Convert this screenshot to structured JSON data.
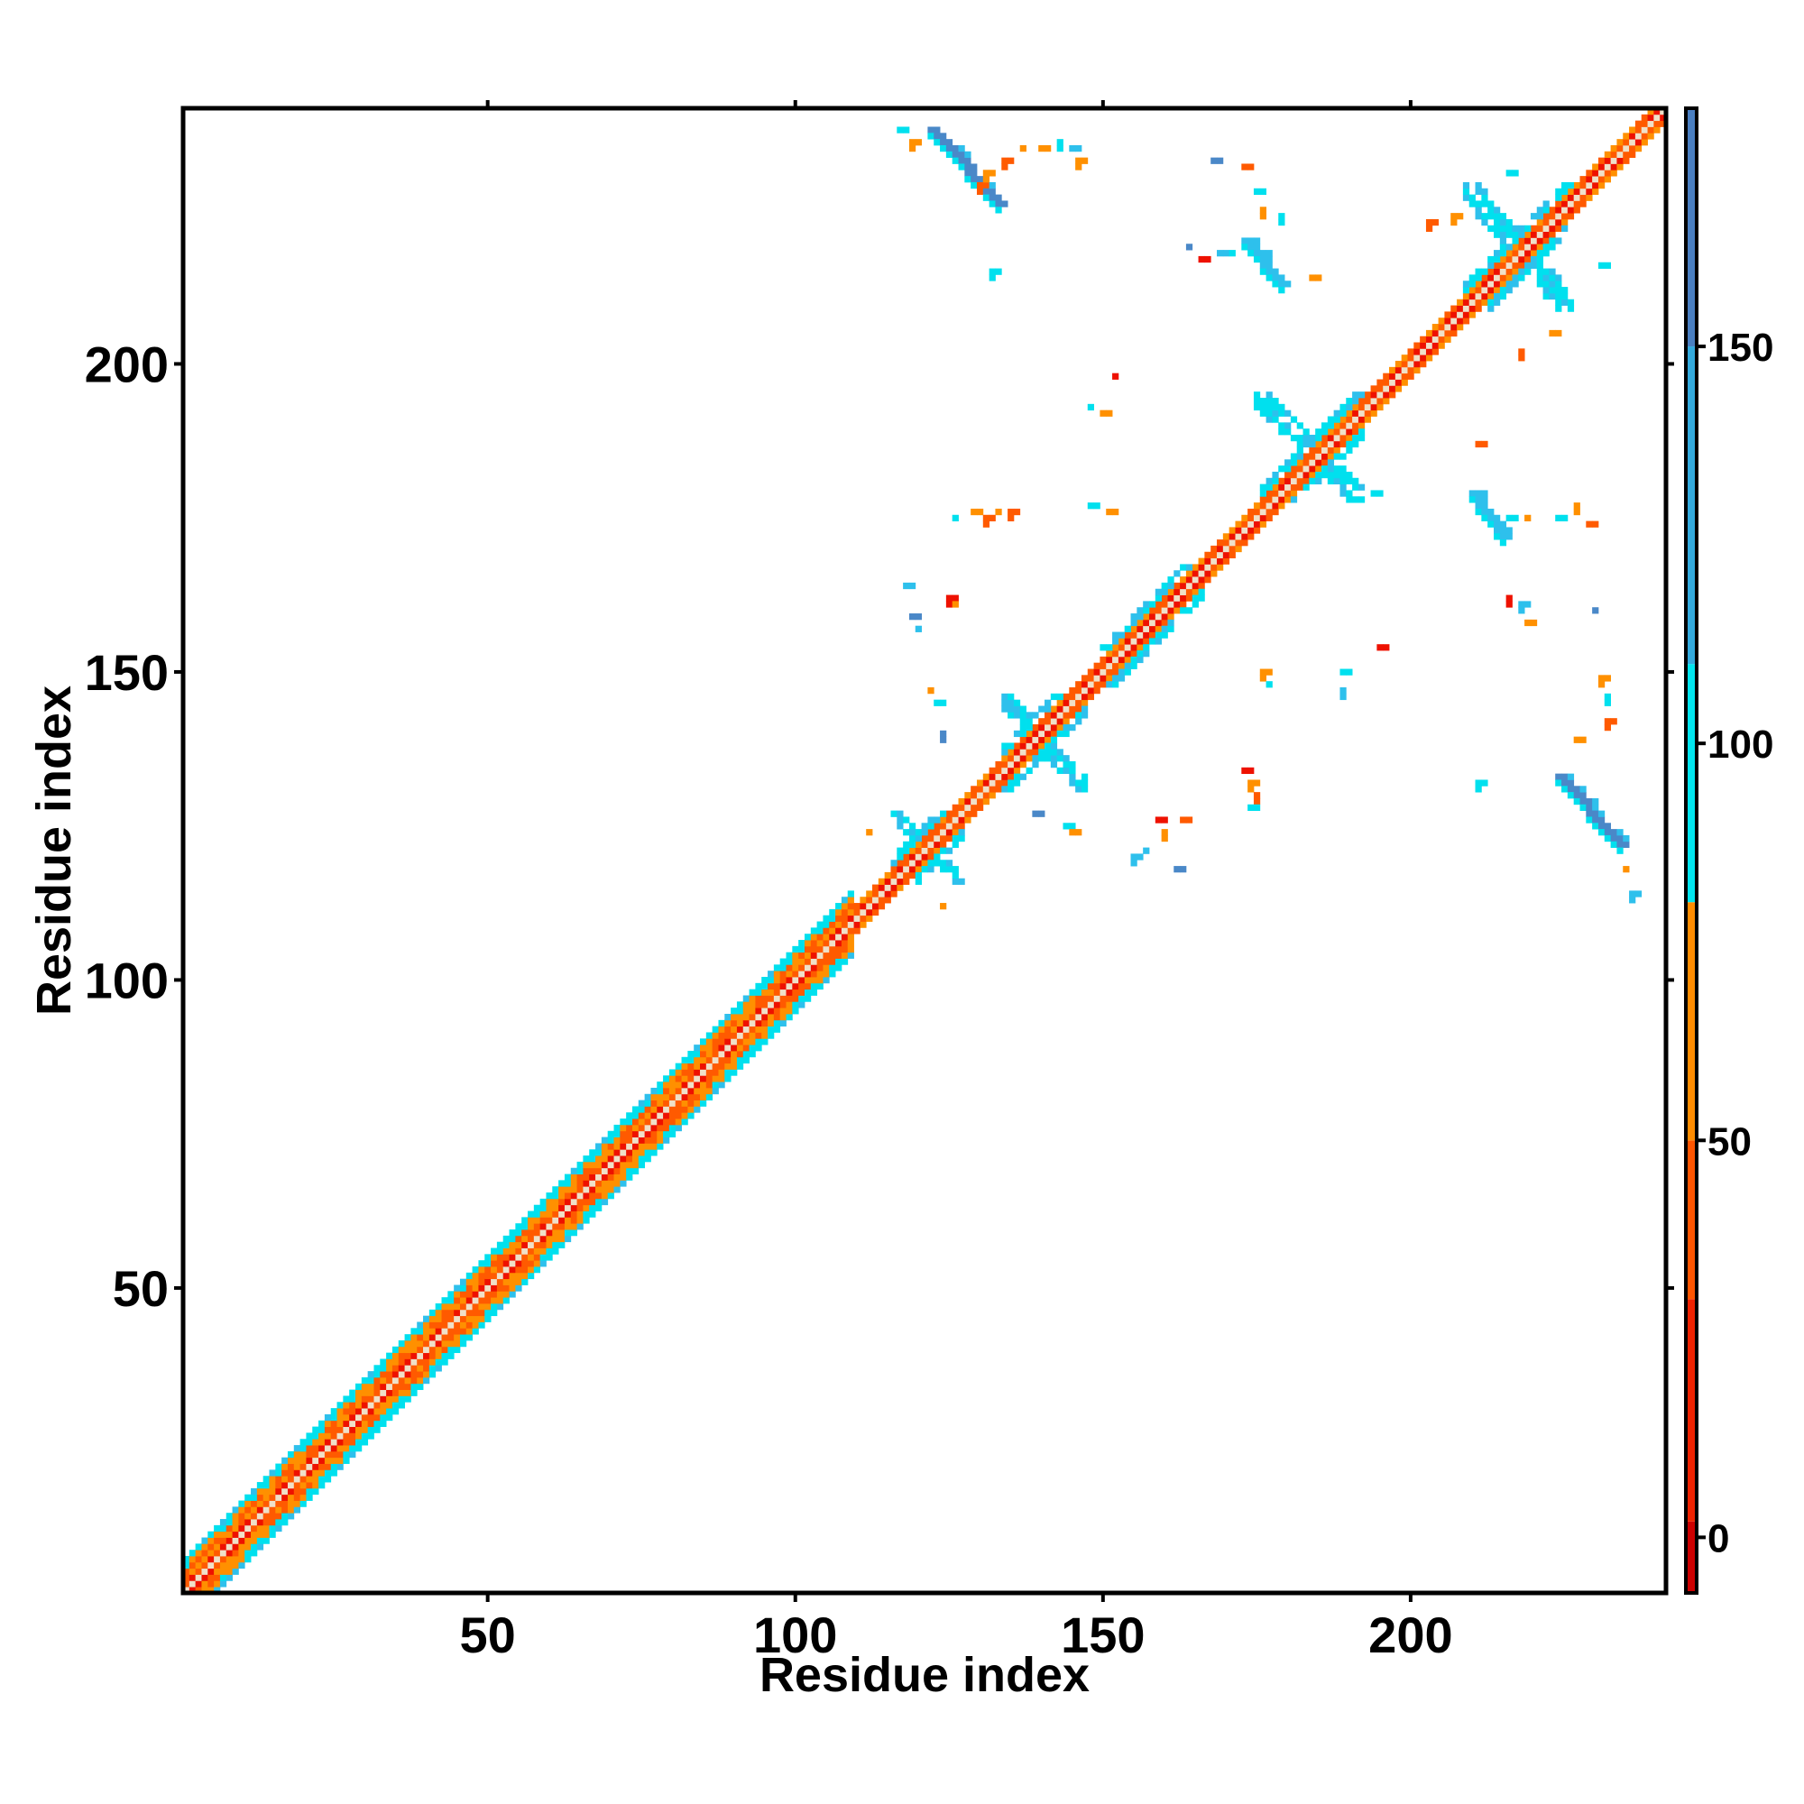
{
  "chart_data": {
    "type": "heatmap",
    "title": "",
    "xlabel": "Residue index",
    "ylabel": "Residue index",
    "xlim": [
      1,
      241
    ],
    "ylim": [
      1,
      241
    ],
    "xticks": [
      50,
      100,
      150,
      200
    ],
    "yticks": [
      50,
      100,
      150,
      200
    ],
    "grid": false,
    "colorbar": {
      "position": "right",
      "range": [
        -7,
        180
      ],
      "ticks": [
        0,
        50,
        100,
        150
      ],
      "colors": [
        {
          "from": -7,
          "to": 2,
          "color": "#cc0000"
        },
        {
          "from": 2,
          "to": 30,
          "color": "#ee2200"
        },
        {
          "from": 30,
          "to": 50,
          "color": "#ff5500"
        },
        {
          "from": 50,
          "to": 80,
          "color": "#ff8c00"
        },
        {
          "from": 80,
          "to": 110,
          "color": "#00e5ee"
        },
        {
          "from": 110,
          "to": 150,
          "color": "#33aadd"
        },
        {
          "from": 150,
          "to": 180,
          "color": "#4a7fc1"
        }
      ]
    },
    "category_colors": {
      "diag": "#f0e0c8",
      "red": "#ee1100",
      "dark_orange": "#ff5a00",
      "orange": "#ff9000",
      "cyan": "#00e0ee",
      "light_blue": "#2ec0ec",
      "steel_blue": "#4a88c8"
    },
    "diagonal_band": {
      "from": 1,
      "to": 241,
      "half_width_lo": 5,
      "half_width_hi": 2
    },
    "secondary_structure_blocks": [
      {
        "x": [
          116,
          127
        ],
        "y": [
          116,
          127
        ],
        "shape": "cross"
      },
      {
        "x": [
          134,
          147
        ],
        "y": [
          131,
          146
        ],
        "shape": "cross"
      },
      {
        "x": [
          150,
          166
        ],
        "y": [
          148,
          167
        ],
        "shape": "band"
      },
      {
        "x": [
          175,
          192
        ],
        "y": [
          178,
          195
        ],
        "shape": "cross"
      },
      {
        "x": [
          209,
          226
        ],
        "y": [
          209,
          229
        ],
        "shape": "cross"
      }
    ],
    "antiparallel_segments": [
      {
        "x1": 122,
        "y1": 238,
        "x2": 133,
        "y2": 226,
        "color": "steel_blue"
      },
      {
        "x1": 173,
        "y1": 220,
        "x2": 179,
        "y2": 213,
        "color": "light_blue"
      },
      {
        "x1": 210,
        "y1": 179,
        "x2": 215,
        "y2": 172,
        "color": "light_blue"
      },
      {
        "x1": 224,
        "y1": 133,
        "x2": 234,
        "y2": 122,
        "color": "steel_blue"
      }
    ],
    "contact_clusters": [
      {
        "x": 117,
        "y": 238,
        "color": "cyan"
      },
      {
        "x": 119,
        "y": 236,
        "color": "orange"
      },
      {
        "x": 130,
        "y": 229,
        "color": "dark_orange"
      },
      {
        "x": 131,
        "y": 231,
        "color": "orange"
      },
      {
        "x": 134,
        "y": 233,
        "color": "dark_orange"
      },
      {
        "x": 137,
        "y": 235,
        "color": "orange"
      },
      {
        "x": 140,
        "y": 235,
        "color": "orange"
      },
      {
        "x": 143,
        "y": 236,
        "color": "cyan"
      },
      {
        "x": 145,
        "y": 235,
        "color": "light_blue"
      },
      {
        "x": 146,
        "y": 233,
        "color": "orange"
      },
      {
        "x": 168,
        "y": 233,
        "color": "steel_blue"
      },
      {
        "x": 173,
        "y": 232,
        "color": "dark_orange"
      },
      {
        "x": 175,
        "y": 228,
        "color": "cyan"
      },
      {
        "x": 176,
        "y": 225,
        "color": "orange"
      },
      {
        "x": 179,
        "y": 224,
        "color": "cyan"
      },
      {
        "x": 164,
        "y": 219,
        "color": "steel_blue"
      },
      {
        "x": 166,
        "y": 217,
        "color": "red"
      },
      {
        "x": 169,
        "y": 218,
        "color": "light_blue"
      },
      {
        "x": 171,
        "y": 218,
        "color": "cyan"
      },
      {
        "x": 132,
        "y": 215,
        "color": "cyan"
      },
      {
        "x": 184,
        "y": 214,
        "color": "orange"
      },
      {
        "x": 203,
        "y": 223,
        "color": "dark_orange"
      },
      {
        "x": 207,
        "y": 224,
        "color": "orange"
      },
      {
        "x": 216,
        "y": 231,
        "color": "cyan"
      },
      {
        "x": 231,
        "y": 216,
        "color": "cyan"
      },
      {
        "x": 223,
        "y": 205,
        "color": "orange"
      },
      {
        "x": 218,
        "y": 202,
        "color": "dark_orange"
      },
      {
        "x": 152,
        "y": 198,
        "color": "red"
      },
      {
        "x": 148,
        "y": 193,
        "color": "cyan"
      },
      {
        "x": 150,
        "y": 192,
        "color": "orange"
      },
      {
        "x": 126,
        "y": 175,
        "color": "cyan"
      },
      {
        "x": 129,
        "y": 176,
        "color": "orange"
      },
      {
        "x": 131,
        "y": 175,
        "color": "dark_orange"
      },
      {
        "x": 133,
        "y": 176,
        "color": "orange"
      },
      {
        "x": 135,
        "y": 176,
        "color": "dark_orange"
      },
      {
        "x": 148,
        "y": 177,
        "color": "cyan"
      },
      {
        "x": 151,
        "y": 176,
        "color": "orange"
      },
      {
        "x": 194,
        "y": 179,
        "color": "cyan"
      },
      {
        "x": 216,
        "y": 175,
        "color": "cyan"
      },
      {
        "x": 219,
        "y": 175,
        "color": "orange"
      },
      {
        "x": 224,
        "y": 175,
        "color": "cyan"
      },
      {
        "x": 227,
        "y": 177,
        "color": "orange"
      },
      {
        "x": 229,
        "y": 174,
        "color": "dark_orange"
      },
      {
        "x": 211,
        "y": 187,
        "color": "dark_orange"
      },
      {
        "x": 118,
        "y": 164,
        "color": "light_blue"
      },
      {
        "x": 119,
        "y": 159,
        "color": "steel_blue"
      },
      {
        "x": 120,
        "y": 157,
        "color": "light_blue"
      },
      {
        "x": 125,
        "y": 162,
        "color": "red"
      },
      {
        "x": 126,
        "y": 161,
        "color": "orange"
      },
      {
        "x": 216,
        "y": 162,
        "color": "red"
      },
      {
        "x": 218,
        "y": 161,
        "color": "light_blue"
      },
      {
        "x": 219,
        "y": 158,
        "color": "orange"
      },
      {
        "x": 230,
        "y": 160,
        "color": "steel_blue"
      },
      {
        "x": 195,
        "y": 154,
        "color": "red"
      },
      {
        "x": 176,
        "y": 150,
        "color": "orange"
      },
      {
        "x": 177,
        "y": 148,
        "color": "cyan"
      },
      {
        "x": 189,
        "y": 150,
        "color": "cyan"
      },
      {
        "x": 189,
        "y": 147,
        "color": "light_blue"
      },
      {
        "x": 231,
        "y": 149,
        "color": "orange"
      },
      {
        "x": 232,
        "y": 146,
        "color": "cyan"
      },
      {
        "x": 232,
        "y": 142,
        "color": "dark_orange"
      },
      {
        "x": 227,
        "y": 139,
        "color": "orange"
      },
      {
        "x": 122,
        "y": 147,
        "color": "orange"
      },
      {
        "x": 123,
        "y": 145,
        "color": "cyan"
      },
      {
        "x": 124,
        "y": 140,
        "color": "steel_blue"
      },
      {
        "x": 173,
        "y": 134,
        "color": "red"
      },
      {
        "x": 174,
        "y": 132,
        "color": "orange"
      },
      {
        "x": 175,
        "y": 130,
        "color": "dark_orange"
      },
      {
        "x": 174,
        "y": 128,
        "color": "cyan"
      },
      {
        "x": 211,
        "y": 132,
        "color": "cyan"
      },
      {
        "x": 139,
        "y": 127,
        "color": "steel_blue"
      },
      {
        "x": 144,
        "y": 125,
        "color": "cyan"
      },
      {
        "x": 145,
        "y": 124,
        "color": "orange"
      },
      {
        "x": 159,
        "y": 126,
        "color": "red"
      },
      {
        "x": 160,
        "y": 124,
        "color": "orange"
      },
      {
        "x": 163,
        "y": 126,
        "color": "dark_orange"
      },
      {
        "x": 155,
        "y": 120,
        "color": "light_blue"
      },
      {
        "x": 157,
        "y": 121,
        "color": "light_blue"
      },
      {
        "x": 162,
        "y": 118,
        "color": "steel_blue"
      },
      {
        "x": 235,
        "y": 118,
        "color": "orange"
      },
      {
        "x": 236,
        "y": 114,
        "color": "light_blue"
      },
      {
        "x": 112,
        "y": 124,
        "color": "orange"
      },
      {
        "x": 124,
        "y": 112,
        "color": "orange"
      }
    ]
  }
}
